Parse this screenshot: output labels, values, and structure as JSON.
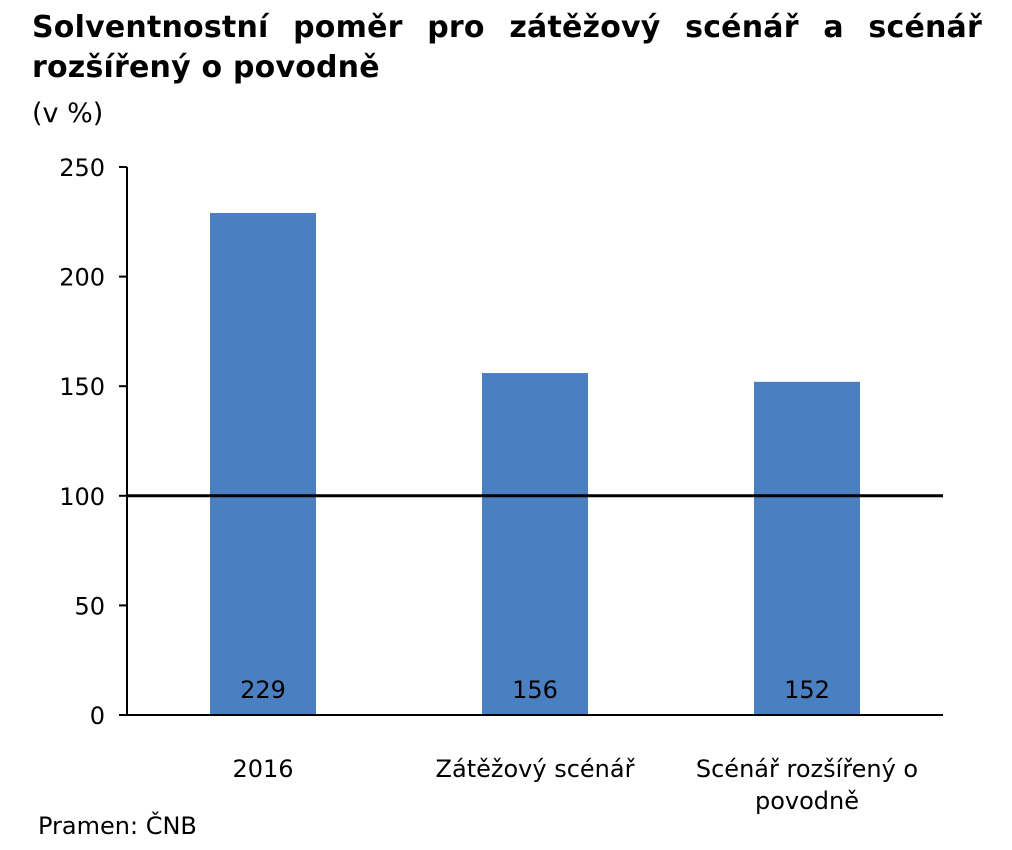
{
  "title": "Solventnostní poměr pro zátěžový scénář a scénář rozšířený o povodně",
  "unit_label": "(v %)",
  "source": "Pramen: ČNB",
  "colors": {
    "bar": "#4a7fc1",
    "axis": "#000000"
  },
  "chart_data": {
    "type": "bar",
    "categories": [
      "2016",
      "Zátěžový scénář",
      "Scénář rozšířený o povodně"
    ],
    "values": [
      229,
      156,
      152
    ],
    "data_labels": [
      "229",
      "156",
      "152"
    ],
    "ylim": [
      0,
      250
    ],
    "yticks": [
      "0",
      "50",
      "100",
      "150",
      "200",
      "250"
    ],
    "reference_line": 100,
    "grid": false,
    "legend": "none"
  }
}
